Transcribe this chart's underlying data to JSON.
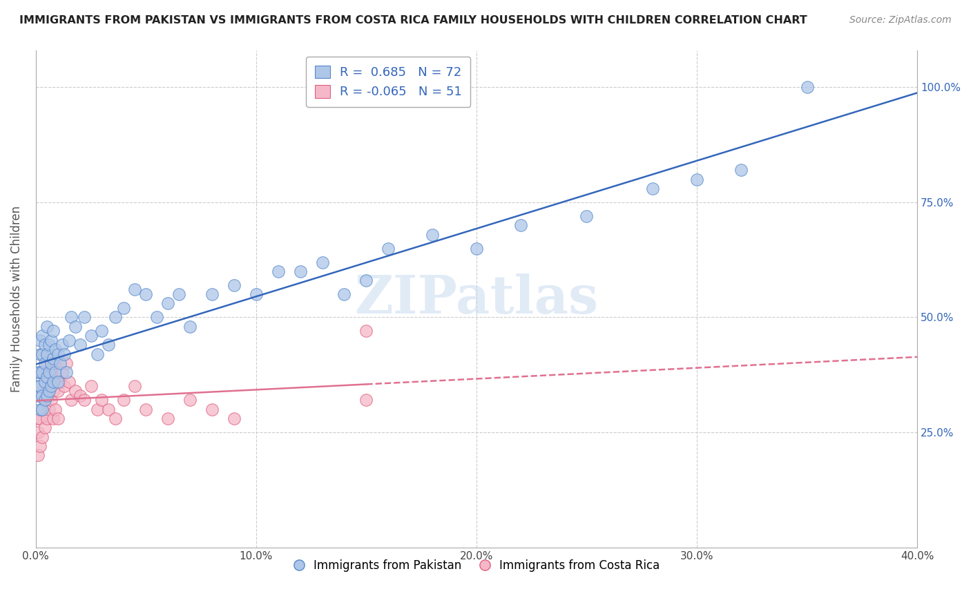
{
  "title": "IMMIGRANTS FROM PAKISTAN VS IMMIGRANTS FROM COSTA RICA FAMILY HOUSEHOLDS WITH CHILDREN CORRELATION CHART",
  "source": "Source: ZipAtlas.com",
  "ylabel": "Family Households with Children",
  "xmin": 0.0,
  "xmax": 0.4,
  "ymin": 0.0,
  "ymax": 1.08,
  "pakistan_color": "#aec6e8",
  "pakistan_edge": "#5588cc",
  "costa_rica_color": "#f4b8c8",
  "costa_rica_edge": "#e06080",
  "pakistan_R": 0.685,
  "pakistan_N": 72,
  "costa_rica_R": -0.065,
  "costa_rica_N": 51,
  "line_blue": "#3366bb",
  "line_pink": "#e07090",
  "ytick_vals": [
    0.25,
    0.5,
    0.75,
    1.0
  ],
  "ytick_labels": [
    "25.0%",
    "50.0%",
    "75.0%",
    "100.0%"
  ],
  "xtick_vals": [
    0.0,
    0.1,
    0.2,
    0.3,
    0.4
  ],
  "xtick_labels": [
    "0.0%",
    "10.0%",
    "20.0%",
    "30.0%",
    "40.0%"
  ],
  "watermark": "ZIPatlas",
  "pakistan_x": [
    0.001,
    0.001,
    0.001,
    0.002,
    0.002,
    0.002,
    0.002,
    0.002,
    0.003,
    0.003,
    0.003,
    0.003,
    0.003,
    0.004,
    0.004,
    0.004,
    0.004,
    0.005,
    0.005,
    0.005,
    0.005,
    0.006,
    0.006,
    0.006,
    0.007,
    0.007,
    0.007,
    0.008,
    0.008,
    0.008,
    0.009,
    0.009,
    0.01,
    0.01,
    0.011,
    0.012,
    0.013,
    0.014,
    0.015,
    0.016,
    0.018,
    0.02,
    0.022,
    0.025,
    0.028,
    0.03,
    0.033,
    0.036,
    0.04,
    0.045,
    0.05,
    0.055,
    0.06,
    0.065,
    0.07,
    0.08,
    0.09,
    0.1,
    0.11,
    0.12,
    0.13,
    0.14,
    0.15,
    0.16,
    0.18,
    0.2,
    0.22,
    0.25,
    0.28,
    0.3,
    0.32,
    0.35
  ],
  "pakistan_y": [
    0.33,
    0.35,
    0.38,
    0.3,
    0.35,
    0.38,
    0.42,
    0.45,
    0.3,
    0.33,
    0.38,
    0.42,
    0.46,
    0.32,
    0.36,
    0.4,
    0.44,
    0.33,
    0.37,
    0.42,
    0.48,
    0.34,
    0.38,
    0.44,
    0.35,
    0.4,
    0.45,
    0.36,
    0.41,
    0.47,
    0.38,
    0.43,
    0.36,
    0.42,
    0.4,
    0.44,
    0.42,
    0.38,
    0.45,
    0.5,
    0.48,
    0.44,
    0.5,
    0.46,
    0.42,
    0.47,
    0.44,
    0.5,
    0.52,
    0.56,
    0.55,
    0.5,
    0.53,
    0.55,
    0.48,
    0.55,
    0.57,
    0.55,
    0.6,
    0.6,
    0.62,
    0.55,
    0.58,
    0.65,
    0.68,
    0.65,
    0.7,
    0.72,
    0.78,
    0.8,
    0.82,
    1.0
  ],
  "costa_rica_x": [
    0.001,
    0.001,
    0.001,
    0.002,
    0.002,
    0.002,
    0.002,
    0.003,
    0.003,
    0.003,
    0.003,
    0.004,
    0.004,
    0.004,
    0.005,
    0.005,
    0.005,
    0.006,
    0.006,
    0.007,
    0.007,
    0.008,
    0.008,
    0.008,
    0.009,
    0.009,
    0.01,
    0.01,
    0.011,
    0.012,
    0.013,
    0.014,
    0.015,
    0.016,
    0.018,
    0.02,
    0.022,
    0.025,
    0.028,
    0.03,
    0.033,
    0.036,
    0.04,
    0.045,
    0.05,
    0.06,
    0.07,
    0.08,
    0.09,
    0.15,
    0.15
  ],
  "costa_rica_y": [
    0.2,
    0.25,
    0.28,
    0.22,
    0.28,
    0.33,
    0.38,
    0.24,
    0.3,
    0.35,
    0.42,
    0.26,
    0.32,
    0.38,
    0.28,
    0.34,
    0.4,
    0.3,
    0.36,
    0.32,
    0.38,
    0.28,
    0.34,
    0.4,
    0.3,
    0.36,
    0.28,
    0.34,
    0.36,
    0.38,
    0.35,
    0.4,
    0.36,
    0.32,
    0.34,
    0.33,
    0.32,
    0.35,
    0.3,
    0.32,
    0.3,
    0.28,
    0.32,
    0.35,
    0.3,
    0.28,
    0.32,
    0.3,
    0.28,
    0.32,
    0.47
  ]
}
